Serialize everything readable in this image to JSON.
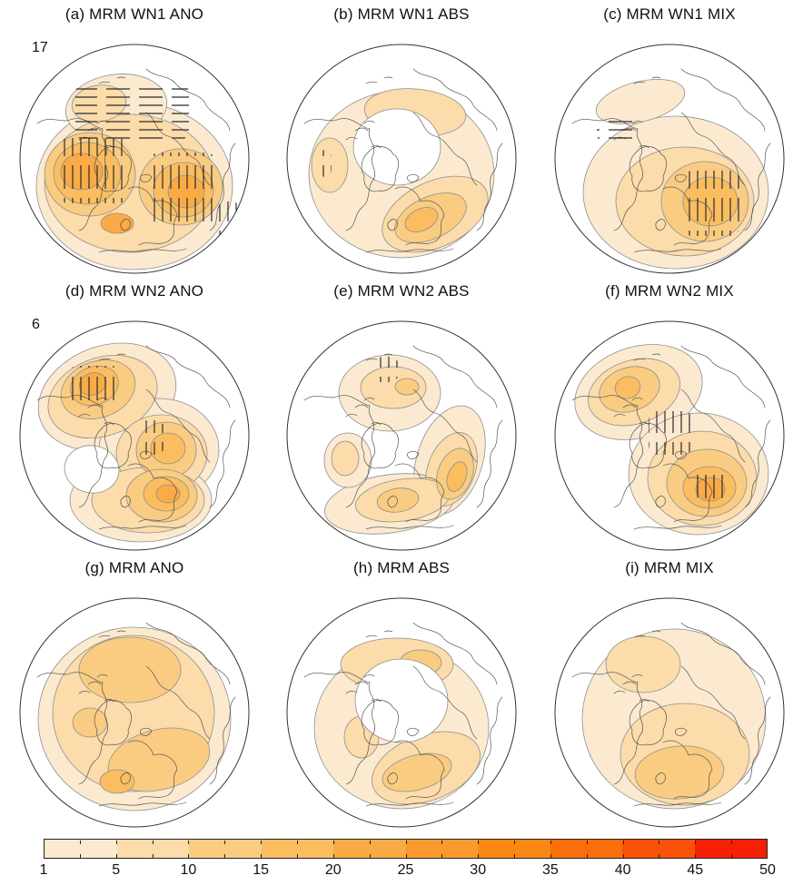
{
  "figure": {
    "kind": "scientific-multi-panel-contour-figure",
    "background": "#ffffff"
  },
  "panels": [
    {
      "id": "a",
      "label": "(a) MRM WN1 ANO",
      "annotation": "17",
      "pattern": "wn1_ano",
      "hatching": [
        "horizontal",
        "vertical"
      ]
    },
    {
      "id": "b",
      "label": "(b) MRM WN1 ABS",
      "annotation": "",
      "pattern": "wn1_abs",
      "hatching": [
        "vertical"
      ]
    },
    {
      "id": "c",
      "label": "(c) MRM WN1 MIX",
      "annotation": "",
      "pattern": "wn1_mix",
      "hatching": [
        "horizontal",
        "vertical"
      ]
    },
    {
      "id": "d",
      "label": "(d) MRM WN2 ANO",
      "annotation": "6",
      "pattern": "wn2_ano",
      "hatching": [
        "vertical"
      ]
    },
    {
      "id": "e",
      "label": "(e) MRM WN2 ABS",
      "annotation": "",
      "pattern": "wn2_abs",
      "hatching": [
        "vertical"
      ]
    },
    {
      "id": "f",
      "label": "(f) MRM WN2 MIX",
      "annotation": "",
      "pattern": "wn2_mix",
      "hatching": [
        "vertical"
      ]
    },
    {
      "id": "g",
      "label": "(g) MRM ANO",
      "annotation": "",
      "pattern": "mrm_ano",
      "hatching": []
    },
    {
      "id": "h",
      "label": "(h) MRM ABS",
      "annotation": "",
      "pattern": "mrm_abs",
      "hatching": []
    },
    {
      "id": "i",
      "label": "(i) MRM MIX",
      "annotation": "",
      "pattern": "mrm_mix",
      "hatching": []
    }
  ],
  "palette": {
    "map_fill_levels": [
      "#fbead0",
      "#fbdcaa",
      "#facc82",
      "#fabd60",
      "#faab45",
      "#fa9a2e"
    ],
    "contour_line": "#8f8f8f",
    "coastline": "#4a4a4a",
    "circle_outline": "#333333",
    "hatch": "#2b2b2b"
  },
  "colorbar": {
    "orientation": "horizontal",
    "min": 1,
    "max": 50,
    "tick_labels": [
      "1",
      "5",
      "10",
      "15",
      "20",
      "25",
      "30",
      "35",
      "40",
      "45",
      "50"
    ],
    "segment_colors": [
      "#fbead0",
      "#fbdcaa",
      "#facc82",
      "#fabd60",
      "#faab45",
      "#fa9a2e",
      "#fb8814",
      "#fa6e0c",
      "#f95107",
      "#f62004"
    ]
  },
  "chart_data": {
    "type": "heatmap",
    "description": "3x3 grid of Northern Hemisphere polar contour maps (blocking-frequency style filled contours) with shared horizontal colorbar",
    "rows": [
      [
        "(a) MRM WN1 ANO",
        "(b) MRM WN1 ABS",
        "(c) MRM WN1 MIX"
      ],
      [
        "(d) MRM WN2 ANO",
        "(e) MRM WN2 ABS",
        "(f) MRM WN2 MIX"
      ],
      [
        "(g) MRM ANO",
        "(h) MRM ABS",
        "(i) MRM MIX"
      ]
    ],
    "panel_annotations": {
      "a": "17",
      "d": "6"
    },
    "contour_levels": [
      1,
      5,
      10,
      15,
      20,
      25,
      30,
      35,
      40,
      45,
      50
    ],
    "colorbar_range": [
      1,
      50
    ],
    "colorbar_tick_labels": [
      "1",
      "5",
      "10",
      "15",
      "20",
      "25",
      "30",
      "35",
      "40",
      "45",
      "50"
    ],
    "legend_position": "bottom"
  }
}
